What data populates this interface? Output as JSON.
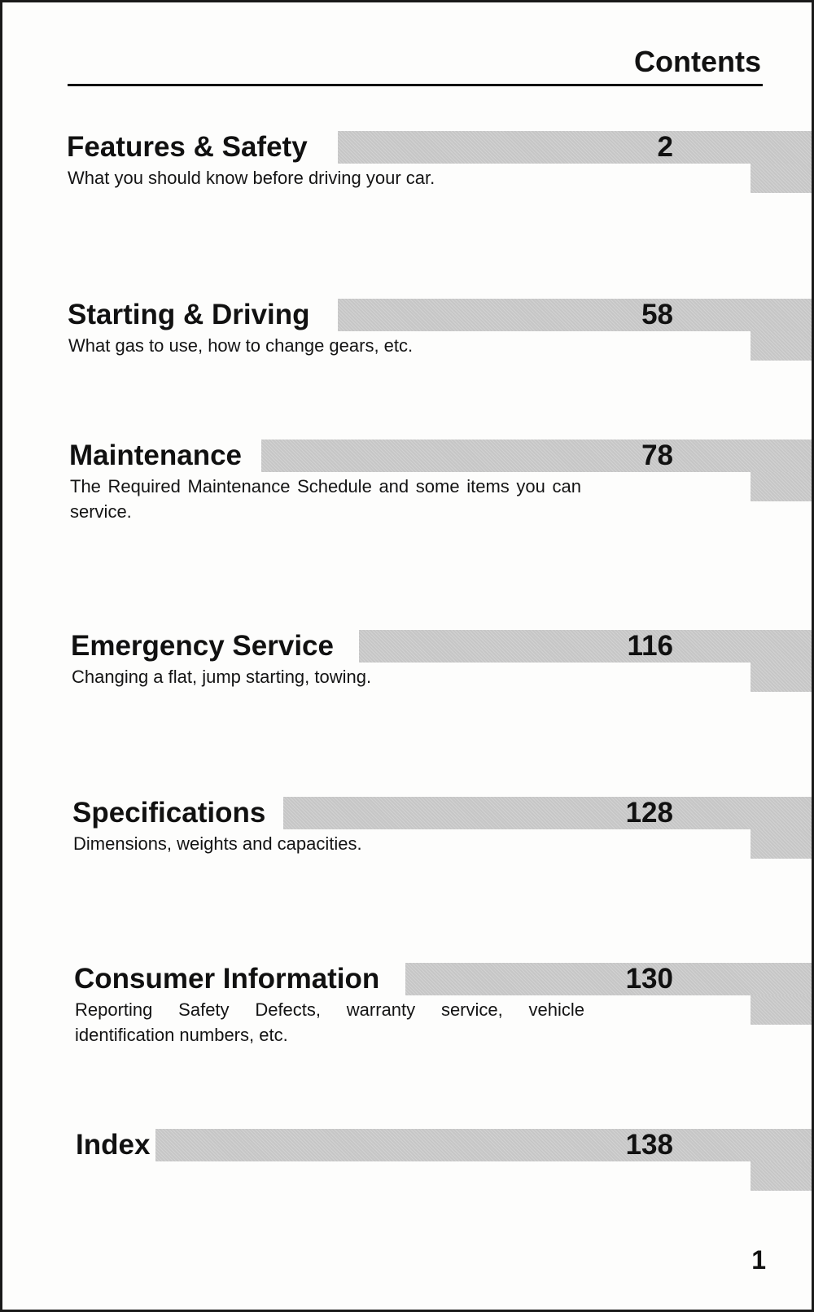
{
  "header": {
    "title": "Contents"
  },
  "entries": [
    {
      "title": "Features & Safety",
      "page": "2",
      "description": "What you should know before driving your car."
    },
    {
      "title": "Starting & Driving",
      "page": "58",
      "description": "What gas to use, how to change gears, etc."
    },
    {
      "title": "Maintenance",
      "page": "78",
      "description": "The Required Maintenance Schedule and some items you can service."
    },
    {
      "title": "Emergency Service",
      "page": "116",
      "description": "Changing a flat, jump starting, towing."
    },
    {
      "title": "Specifications",
      "page": "128",
      "description": "Dimensions, weights and capacities."
    },
    {
      "title": "Consumer Information",
      "page": "130",
      "description": "Reporting Safety Defects, warranty service, vehicle identification numbers, etc."
    },
    {
      "title": "Index",
      "page": "138",
      "description": ""
    }
  ],
  "folio": "1"
}
